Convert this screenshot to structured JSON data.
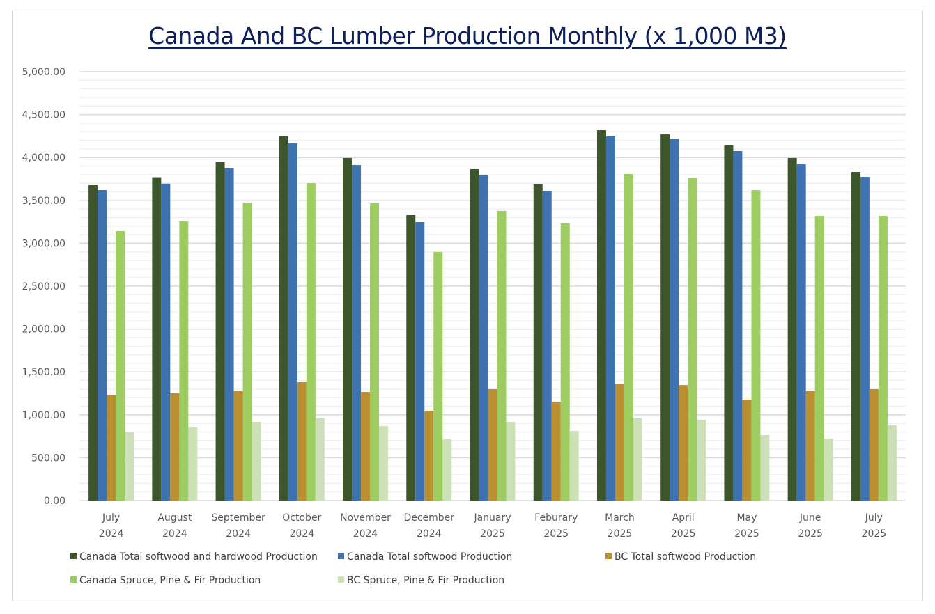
{
  "chart_data": {
    "type": "bar",
    "title": "Canada And BC Lumber Production Monthly (x 1,000 M3)",
    "xlabel": "",
    "ylabel": "",
    "ylim": [
      0,
      5000
    ],
    "yticks": [
      0,
      500,
      1000,
      1500,
      2000,
      2500,
      3000,
      3500,
      4000,
      4500,
      5000
    ],
    "ytick_labels": [
      "0.00",
      "500.00",
      "1,000.00",
      "1,500.00",
      "2,000.00",
      "2,500.00",
      "3,000.00",
      "3,500.00",
      "4,000.00",
      "4,500.00",
      "5,000.00"
    ],
    "minor_grid_step": 100,
    "grid": true,
    "legend_position": "bottom",
    "categories": [
      [
        "July",
        "2024"
      ],
      [
        "August",
        "2024"
      ],
      [
        "September",
        "2024"
      ],
      [
        "October",
        "2024"
      ],
      [
        "November",
        "2024"
      ],
      [
        "December",
        "2024"
      ],
      [
        "January",
        "2025"
      ],
      [
        "Feburary",
        "2025"
      ],
      [
        "March",
        "2025"
      ],
      [
        "April",
        "2025"
      ],
      [
        "May",
        "2025"
      ],
      [
        "June",
        "2025"
      ],
      [
        "July",
        "2025"
      ]
    ],
    "series": [
      {
        "name": "Canada Total softwood and hardwood Production",
        "color": "#3e562b",
        "values": [
          3677,
          3770,
          3945,
          4245,
          3994,
          3328,
          3864,
          3685,
          4318,
          4269,
          4140,
          3994,
          3831
        ]
      },
      {
        "name": "Canada Total softwood Production",
        "color": "#3f72b0",
        "values": [
          3620,
          3695,
          3872,
          4164,
          3912,
          3247,
          3791,
          3612,
          4245,
          4213,
          4075,
          3920,
          3774
        ]
      },
      {
        "name": "BC Total softwood Production",
        "color": "#b98f31",
        "values": [
          1226,
          1250,
          1274,
          1380,
          1266,
          1047,
          1299,
          1153,
          1356,
          1347,
          1177,
          1274,
          1299
        ]
      },
      {
        "name": "Canada Spruce, Pine & Fir Production",
        "color": "#9dcd60",
        "values": [
          3141,
          3255,
          3474,
          3701,
          3466,
          2898,
          3377,
          3231,
          3807,
          3766,
          3620,
          3320,
          3320
        ]
      },
      {
        "name": "BC Spruce, Pine & Fir Production",
        "color": "#cce0b8",
        "values": [
          795,
          852,
          917,
          958,
          868,
          714,
          917,
          812,
          958,
          942,
          763,
          722,
          877
        ]
      }
    ]
  }
}
